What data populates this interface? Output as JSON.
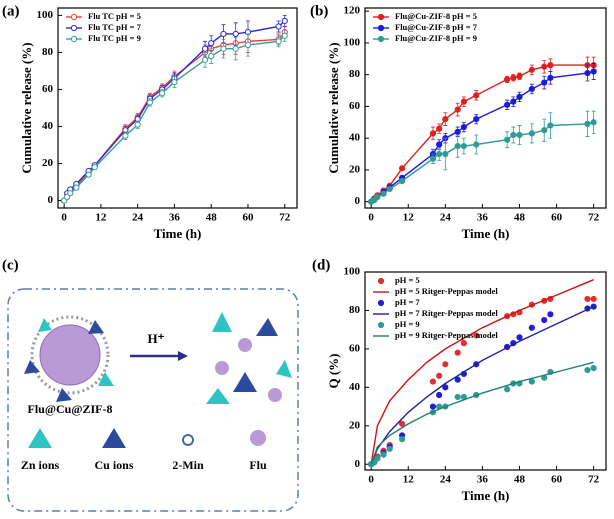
{
  "chart_data": [
    {
      "type": "line",
      "label": "(a)",
      "x_label": "Time (h)",
      "y_label": "Cumulative release (%)",
      "xlim": [
        -2,
        76
      ],
      "xticks": [
        0,
        12,
        24,
        36,
        48,
        60,
        72
      ],
      "ylim": [
        -4,
        104
      ],
      "yticks": [
        0,
        20,
        40,
        60,
        80,
        100
      ],
      "marker": "open",
      "legend": "upper left",
      "x": [
        0,
        1,
        2,
        4,
        8,
        10,
        20,
        24,
        28,
        32,
        36,
        46,
        48,
        52,
        56,
        60,
        70,
        72
      ],
      "series": [
        {
          "name": "Flu TC pH = 5",
          "color": "#e8413c",
          "values": [
            0,
            3,
            5,
            8,
            15,
            19,
            39,
            45,
            56,
            61,
            67,
            80,
            82,
            84,
            85,
            86,
            87,
            91
          ],
          "errors": [
            0,
            1,
            1,
            1,
            1,
            1,
            2,
            2,
            2,
            2,
            3,
            4,
            4,
            5,
            6,
            6,
            3,
            3
          ]
        },
        {
          "name": "Flu TC pH = 7",
          "color": "#2a2ad0",
          "values": [
            0,
            4,
            6,
            9,
            16,
            19,
            38,
            44,
            55,
            60,
            66,
            82,
            85,
            90,
            90,
            91,
            94,
            97
          ],
          "errors": [
            0,
            1,
            1,
            1,
            1,
            1,
            2,
            2,
            2,
            2,
            3,
            4,
            4,
            5,
            6,
            6,
            3,
            3
          ]
        },
        {
          "name": "Flu TC pH = 9",
          "color": "#3a9e96",
          "values": [
            0,
            2,
            4,
            7,
            14,
            18,
            35,
            41,
            53,
            58,
            64,
            76,
            78,
            82,
            82,
            84,
            86,
            89
          ],
          "errors": [
            0,
            1,
            1,
            1,
            1,
            1,
            2,
            2,
            2,
            2,
            3,
            4,
            4,
            5,
            6,
            6,
            3,
            3
          ]
        }
      ]
    },
    {
      "type": "line",
      "label": "(b)",
      "x_label": "Time (h)",
      "y_label": "Cumulative release (%)",
      "xlim": [
        -2,
        76
      ],
      "xticks": [
        0,
        12,
        24,
        36,
        48,
        60,
        72
      ],
      "ylim": [
        -4,
        122
      ],
      "yticks": [
        0,
        20,
        40,
        60,
        80,
        100,
        120
      ],
      "marker": "filled",
      "legend": "upper left",
      "x": [
        0,
        1,
        2,
        4,
        6,
        10,
        20,
        22,
        24,
        28,
        30,
        34,
        44,
        46,
        48,
        52,
        56,
        58,
        70,
        72
      ],
      "series": [
        {
          "name": "Flu@Cu-ZIF-8 pH = 5",
          "color": "#e02020",
          "values": [
            0,
            2,
            4,
            7,
            10,
            21,
            43,
            46,
            52,
            58,
            63,
            67,
            77,
            78,
            79,
            83,
            85,
            86,
            86,
            86
          ],
          "errors": [
            0,
            1,
            1,
            1,
            1,
            1,
            4,
            3,
            4,
            4,
            3,
            3,
            2,
            2,
            2,
            3,
            4,
            4,
            5,
            5
          ]
        },
        {
          "name": "Flu@Cu-ZIF-8 pH = 7",
          "color": "#1a1ae0",
          "values": [
            0,
            1,
            3,
            6,
            9,
            15,
            30,
            36,
            40,
            44,
            47,
            52,
            61,
            63,
            66,
            71,
            75,
            78,
            81,
            82
          ],
          "errors": [
            0,
            1,
            1,
            1,
            1,
            1,
            3,
            3,
            3,
            3,
            3,
            3,
            3,
            3,
            3,
            3,
            4,
            4,
            5,
            5
          ]
        },
        {
          "name": "Flu@Cu-ZIF-8 pH = 9",
          "color": "#2e9c94",
          "values": [
            0,
            1,
            3,
            5,
            8,
            13,
            27,
            30,
            30,
            35,
            35,
            36,
            39,
            42,
            42,
            43,
            45,
            48,
            49,
            50
          ],
          "errors": [
            0,
            1,
            1,
            1,
            1,
            1,
            3,
            4,
            10,
            7,
            5,
            6,
            5,
            5,
            6,
            6,
            7,
            8,
            8,
            7
          ]
        }
      ]
    },
    {
      "type": "scatter",
      "label": "(d)",
      "x_label": "Time (h)",
      "y_label": "Q (%)",
      "xlim": [
        -2,
        76
      ],
      "xticks": [
        0,
        12,
        24,
        36,
        48,
        60,
        72
      ],
      "ylim": [
        -3,
        100
      ],
      "yticks": [
        0,
        20,
        40,
        60,
        80,
        100
      ],
      "legend": "upper left",
      "series": [
        {
          "name": "pH = 5",
          "style": "marker",
          "color": "#e03030",
          "x": [
            0,
            1,
            2,
            4,
            6,
            10,
            20,
            22,
            24,
            28,
            30,
            34,
            44,
            46,
            48,
            52,
            56,
            58,
            70,
            72
          ],
          "values": [
            0,
            2,
            4,
            7,
            10,
            21,
            43,
            46,
            52,
            58,
            63,
            67,
            77,
            78,
            79,
            83,
            85,
            86,
            86,
            86
          ]
        },
        {
          "name": "pH = 5 Ritger-Peppas model",
          "style": "line",
          "color": "#d01010",
          "x": [
            0,
            2,
            6,
            12,
            18,
            24,
            36,
            48,
            60,
            72
          ],
          "values": [
            0,
            20,
            33,
            44,
            53,
            60,
            71,
            80,
            88,
            96
          ]
        },
        {
          "name": "pH = 7",
          "style": "marker",
          "color": "#2020d0",
          "x": [
            0,
            1,
            2,
            4,
            6,
            10,
            20,
            22,
            24,
            28,
            30,
            34,
            44,
            46,
            48,
            52,
            56,
            58,
            70,
            72
          ],
          "values": [
            0,
            1,
            3,
            6,
            9,
            15,
            30,
            36,
            40,
            44,
            47,
            52,
            61,
            63,
            66,
            71,
            75,
            78,
            81,
            82
          ]
        },
        {
          "name": "pH = 7 Ritger-Peppas model",
          "style": "line",
          "color": "#2020a0",
          "x": [
            0,
            2,
            6,
            12,
            18,
            24,
            36,
            48,
            60,
            72
          ],
          "values": [
            0,
            8,
            17,
            27,
            35,
            42,
            54,
            64,
            73,
            82
          ]
        },
        {
          "name": "pH = 9",
          "style": "marker",
          "color": "#2e9c94",
          "x": [
            0,
            1,
            2,
            4,
            6,
            10,
            20,
            22,
            24,
            28,
            30,
            34,
            44,
            46,
            48,
            52,
            56,
            58,
            70,
            72
          ],
          "values": [
            0,
            1,
            3,
            5,
            8,
            13,
            27,
            30,
            30,
            35,
            35,
            36,
            39,
            42,
            42,
            43,
            45,
            48,
            49,
            50
          ]
        },
        {
          "name": "pH = 9 Ritger-Peppas model",
          "style": "line",
          "color": "#208070",
          "x": [
            0,
            2,
            6,
            12,
            18,
            24,
            36,
            48,
            60,
            72
          ],
          "values": [
            0,
            9,
            15,
            21,
            26,
            30,
            37,
            43,
            48,
            53
          ]
        }
      ]
    }
  ],
  "diagram": {
    "label": "(c)",
    "arrow": "H⁺",
    "particle": "Flu@Cu@ZIF-8",
    "legend": [
      "Zn ions",
      "Cu ions",
      "2-Min",
      "Flu"
    ]
  }
}
